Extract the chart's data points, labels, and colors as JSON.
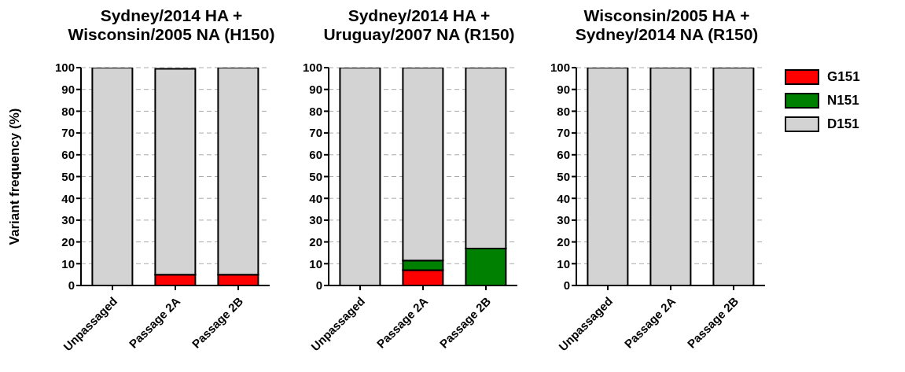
{
  "chart_data": [
    {
      "type": "bar",
      "title": "Sydney/2014 HA + Wisconsin/2005 NA (H150)",
      "ylabel": "Variant frequency (%)",
      "categories": [
        "Unpassaged",
        "Passage 2A",
        "Passage 2B"
      ],
      "stacked": true,
      "ylim": [
        0,
        100
      ],
      "yticks": [
        0,
        10,
        20,
        30,
        40,
        50,
        60,
        70,
        80,
        90,
        100
      ],
      "grid": "y",
      "legend": false,
      "series": [
        {
          "color": "#ff0000",
          "values": [
            0,
            5,
            5
          ]
        },
        {
          "color": "#008000",
          "values": [
            0,
            0,
            0
          ]
        },
        {
          "color": "#d3d3d3",
          "values": [
            100,
            94.5,
            95
          ]
        }
      ]
    },
    {
      "type": "bar",
      "title": "Sydney/2014 HA + Uruguay/2007 NA (R150)",
      "categories": [
        "Unpassaged",
        "Passage 2A",
        "Passage 2B"
      ],
      "stacked": true,
      "ylim": [
        0,
        100
      ],
      "yticks": [
        0,
        10,
        20,
        30,
        40,
        50,
        60,
        70,
        80,
        90,
        100
      ],
      "grid": "y",
      "legend": false,
      "series": [
        {
          "color": "#ff0000",
          "values": [
            0,
            7,
            0
          ]
        },
        {
          "color": "#008000",
          "values": [
            0,
            4.5,
            17
          ]
        },
        {
          "color": "#d3d3d3",
          "values": [
            100,
            88.5,
            83
          ]
        }
      ]
    },
    {
      "type": "bar",
      "title": "Wisconsin/2005 HA + Sydney/2014 NA (R150)",
      "categories": [
        "Unpassaged",
        "Passage 2A",
        "Passage 2B"
      ],
      "stacked": true,
      "ylim": [
        0,
        100
      ],
      "yticks": [
        0,
        10,
        20,
        30,
        40,
        50,
        60,
        70,
        80,
        90,
        100
      ],
      "grid": "y",
      "legend": "right",
      "series": [
        {
          "name": "G151",
          "color": "#ff0000",
          "values": [
            0,
            0,
            0
          ]
        },
        {
          "name": "N151",
          "color": "#008000",
          "values": [
            0,
            0,
            0
          ]
        },
        {
          "name": "D151",
          "color": "#d3d3d3",
          "values": [
            100,
            100,
            100
          ]
        }
      ]
    }
  ]
}
